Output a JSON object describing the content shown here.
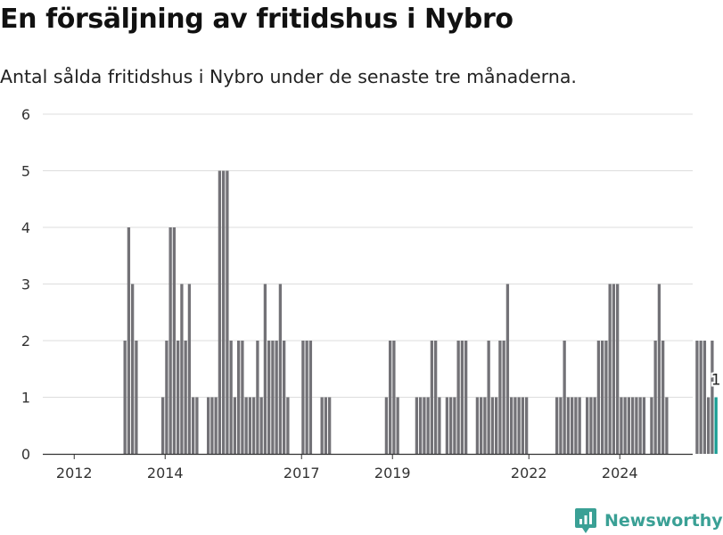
{
  "header": {
    "title": "En försäljning av fritidshus i Nybro",
    "subtitle": "Antal sålda fritidshus i Nybro under de senaste tre månaderna."
  },
  "brand": {
    "name": "Newsworthy",
    "icon": "newsworthy-logo-icon",
    "color": "#3aa095"
  },
  "chart_data": {
    "type": "bar",
    "title": "En försäljning av fritidshus i Nybro",
    "subtitle": "Antal sålda fritidshus i Nybro under de senaste tre månaderna.",
    "xlabel": "",
    "ylabel": "",
    "ylim": [
      0,
      6
    ],
    "yticks": [
      0,
      1,
      2,
      3,
      4,
      5,
      6
    ],
    "xticks": [
      "2012",
      "2014",
      "2017",
      "2019",
      "2022",
      "2024"
    ],
    "grid": true,
    "bar_color": "#737277",
    "highlight_color": "#1a9e94",
    "start_month": "2012-01",
    "highlight_label": "1",
    "values": [
      0,
      0,
      0,
      0,
      0,
      0,
      0,
      0,
      0,
      0,
      0,
      0,
      0,
      0,
      0,
      0,
      0,
      0,
      2,
      4,
      3,
      2,
      0,
      0,
      0,
      0,
      0,
      0,
      1,
      2,
      4,
      4,
      2,
      3,
      2,
      3,
      1,
      1,
      0,
      0,
      1,
      1,
      1,
      5,
      5,
      5,
      2,
      1,
      2,
      2,
      1,
      1,
      1,
      2,
      1,
      3,
      2,
      2,
      2,
      3,
      2,
      1,
      0,
      0,
      0,
      2,
      2,
      2,
      0,
      0,
      1,
      1,
      1,
      0,
      0,
      0,
      0,
      0,
      0,
      0,
      0,
      0,
      0,
      0,
      0,
      0,
      0,
      1,
      2,
      2,
      1,
      0,
      0,
      0,
      0,
      1,
      1,
      1,
      1,
      2,
      2,
      1,
      0,
      1,
      1,
      1,
      2,
      2,
      2,
      0,
      0,
      1,
      1,
      1,
      2,
      1,
      1,
      2,
      2,
      3,
      1,
      1,
      1,
      1,
      1,
      0,
      0,
      0,
      0,
      0,
      0,
      0,
      1,
      1,
      2,
      1,
      1,
      1,
      1,
      0,
      1,
      1,
      1,
      2,
      2,
      2,
      3,
      3,
      3,
      1,
      1,
      1,
      1,
      1,
      1,
      1,
      0,
      1,
      2,
      3,
      2,
      1,
      0,
      0,
      0,
      0,
      0,
      0,
      0,
      2,
      2,
      2,
      1,
      2,
      1
    ]
  }
}
